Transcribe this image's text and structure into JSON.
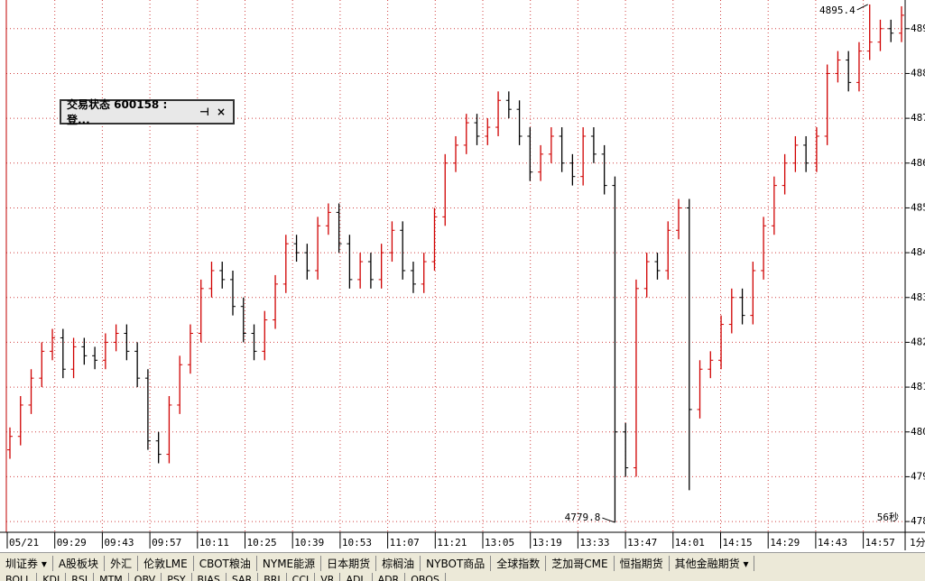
{
  "chart_data": {
    "type": "ohlc",
    "x_labels": [
      "05/21",
      "09:29",
      "09:43",
      "09:57",
      "10:11",
      "10:25",
      "10:39",
      "10:53",
      "11:07",
      "11:21",
      "13:05",
      "13:19",
      "13:33",
      "13:47",
      "14:01",
      "14:15",
      "14:29",
      "14:43",
      "14:57"
    ],
    "period": "1分",
    "ylim": [
      4777.6,
      4896.4
    ],
    "yticks": [
      {
        "value": 4780,
        "label": "478"
      },
      {
        "value": 4790,
        "label": "479"
      },
      {
        "value": 4800,
        "label": "480"
      },
      {
        "value": 4810,
        "label": "481"
      },
      {
        "value": 4820,
        "label": "482"
      },
      {
        "value": 4830,
        "label": "483"
      },
      {
        "value": 4840,
        "label": "484"
      },
      {
        "value": 4850,
        "label": "485"
      },
      {
        "value": 4860,
        "label": "486"
      },
      {
        "value": 4870,
        "label": "487"
      },
      {
        "value": 4880,
        "label": "488"
      },
      {
        "value": 4890,
        "label": "489"
      }
    ],
    "grid": true,
    "up_color": "#d00000",
    "down_color": "#000000",
    "grid_color": "#d04040",
    "high_label": "4895.4",
    "low_label": "4779.8",
    "countdown": "56秒",
    "ohlc": [
      [
        4796,
        4801,
        4794,
        4799
      ],
      [
        4799,
        4808,
        4797,
        4806
      ],
      [
        4806,
        4814,
        4804,
        4812
      ],
      [
        4812,
        4820,
        4810,
        4818
      ],
      [
        4818,
        4823,
        4816,
        4821
      ],
      [
        4821,
        4823,
        4812,
        4814
      ],
      [
        4814,
        4821,
        4812,
        4819
      ],
      [
        4819,
        4821,
        4815,
        4817
      ],
      [
        4817,
        4819,
        4814,
        4816
      ],
      [
        4816,
        4822,
        4814,
        4820
      ],
      [
        4820,
        4824,
        4818,
        4822
      ],
      [
        4822,
        4824,
        4816,
        4818
      ],
      [
        4818,
        4820,
        4810,
        4812
      ],
      [
        4812,
        4814,
        4796,
        4798
      ],
      [
        4798,
        4800,
        4793,
        4795
      ],
      [
        4795,
        4808,
        4793,
        4806
      ],
      [
        4806,
        4817,
        4804,
        4815
      ],
      [
        4815,
        4824,
        4813,
        4822
      ],
      [
        4822,
        4834,
        4820,
        4832
      ],
      [
        4832,
        4838,
        4830,
        4836
      ],
      [
        4836,
        4838,
        4832,
        4834
      ],
      [
        4834,
        4836,
        4826,
        4828
      ],
      [
        4828,
        4830,
        4820,
        4822
      ],
      [
        4822,
        4824,
        4816,
        4818
      ],
      [
        4818,
        4827,
        4816,
        4825
      ],
      [
        4825,
        4835,
        4823,
        4833
      ],
      [
        4833,
        4844,
        4831,
        4842
      ],
      [
        4842,
        4844,
        4838,
        4840
      ],
      [
        4840,
        4842,
        4834,
        4836
      ],
      [
        4836,
        4848,
        4834,
        4846
      ],
      [
        4846,
        4851,
        4844,
        4849
      ],
      [
        4849,
        4851,
        4840,
        4842
      ],
      [
        4842,
        4844,
        4832,
        4834
      ],
      [
        4834,
        4840,
        4832,
        4838
      ],
      [
        4838,
        4840,
        4832,
        4834
      ],
      [
        4834,
        4842,
        4832,
        4840
      ],
      [
        4840,
        4847,
        4838,
        4845
      ],
      [
        4845,
        4847,
        4834,
        4836
      ],
      [
        4836,
        4838,
        4831,
        4833
      ],
      [
        4833,
        4840,
        4831,
        4838
      ],
      [
        4838,
        4850,
        4836,
        4848
      ],
      [
        4848,
        4862,
        4846,
        4860
      ],
      [
        4860,
        4866,
        4858,
        4864
      ],
      [
        4864,
        4871,
        4862,
        4869
      ],
      [
        4869,
        4871,
        4864,
        4866
      ],
      [
        4866,
        4870,
        4864,
        4868
      ],
      [
        4868,
        4876,
        4866,
        4874
      ],
      [
        4874,
        4876,
        4870,
        4872
      ],
      [
        4872,
        4874,
        4864,
        4866
      ],
      [
        4866,
        4868,
        4856,
        4858
      ],
      [
        4858,
        4864,
        4856,
        4862
      ],
      [
        4862,
        4868,
        4860,
        4866
      ],
      [
        4866,
        4868,
        4858,
        4860
      ],
      [
        4860,
        4862,
        4855,
        4857
      ],
      [
        4857,
        4868,
        4855,
        4866
      ],
      [
        4866,
        4868,
        4860,
        4862
      ],
      [
        4862,
        4864,
        4853,
        4855
      ],
      [
        4855,
        4857,
        4779.8,
        4800
      ],
      [
        4800,
        4802,
        4790,
        4792
      ],
      [
        4792,
        4834,
        4790,
        4832
      ],
      [
        4832,
        4840,
        4830,
        4838
      ],
      [
        4838,
        4840,
        4834,
        4836
      ],
      [
        4836,
        4847,
        4834,
        4845
      ],
      [
        4845,
        4852,
        4843,
        4850
      ],
      [
        4850,
        4852,
        4787,
        4805
      ],
      [
        4805,
        4816,
        4803,
        4814
      ],
      [
        4814,
        4818,
        4812,
        4816
      ],
      [
        4816,
        4826,
        4814,
        4824
      ],
      [
        4824,
        4832,
        4822,
        4830
      ],
      [
        4830,
        4832,
        4824,
        4826
      ],
      [
        4826,
        4838,
        4824,
        4836
      ],
      [
        4836,
        4848,
        4834,
        4846
      ],
      [
        4846,
        4857,
        4844,
        4855
      ],
      [
        4855,
        4862,
        4853,
        4860
      ],
      [
        4860,
        4866,
        4858,
        4864
      ],
      [
        4864,
        4866,
        4858,
        4860
      ],
      [
        4860,
        4868,
        4858,
        4866
      ],
      [
        4866,
        4882,
        4864,
        4880
      ],
      [
        4880,
        4885,
        4878,
        4883
      ],
      [
        4883,
        4885,
        4876,
        4878
      ],
      [
        4878,
        4887,
        4876,
        4885
      ],
      [
        4885,
        4895.4,
        4883,
        4887
      ],
      [
        4887,
        4892,
        4885,
        4890
      ],
      [
        4890,
        4892,
        4887,
        4889
      ],
      [
        4889,
        4895,
        4887,
        4893
      ]
    ]
  },
  "window": {
    "title": "交易状态 600158 : 登...",
    "pin": "⊣",
    "close": "×"
  },
  "tabs": [
    "圳证券 ▾",
    "A股板块",
    "外汇",
    "伦敦LME",
    "CBOT粮油",
    "NYME能源",
    "日本期货",
    "棕榈油",
    "NYBOT商品",
    "全球指数",
    "芝加哥CME",
    "恒指期货",
    "其他金融期货 ▾"
  ],
  "indicators": [
    "BOLL",
    "KDJ",
    "RSI",
    "MTM",
    "OBV",
    "PSY",
    "BIAS",
    "SAR",
    "BRI",
    "CCI",
    "VR",
    "ADL",
    "ADR",
    "OBOS"
  ]
}
